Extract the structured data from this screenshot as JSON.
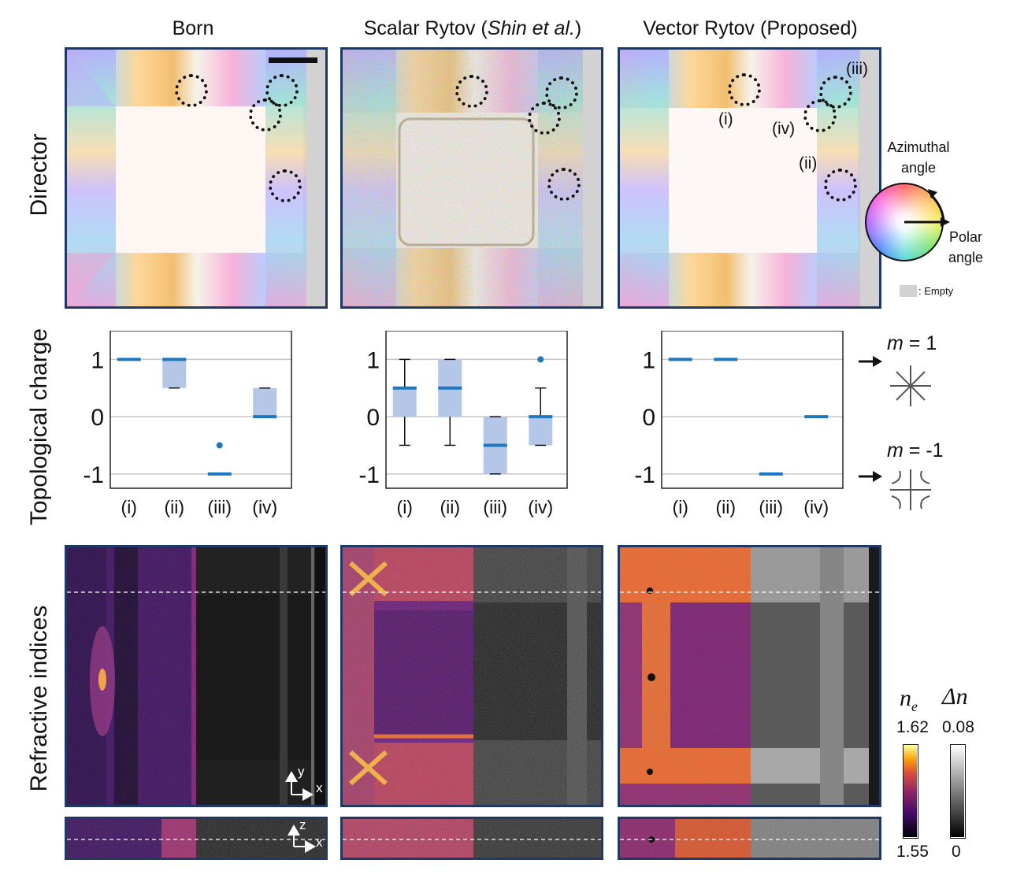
{
  "columns": [
    {
      "title": "Born"
    },
    {
      "title_prefix": "Scalar Rytov (",
      "title_italic": "Shin et al.",
      "title_suffix": ")"
    },
    {
      "title": "Vector Rytov (Proposed)"
    }
  ],
  "row_labels": {
    "director": "Director",
    "topological": "Topological charge",
    "refractive": "Refractive indices"
  },
  "defect_labels": [
    "(i)",
    "(ii)",
    "(iii)",
    "(iv)"
  ],
  "director_legend": {
    "azimuthal_line1": "Azimuthal",
    "azimuthal_line2": "angle",
    "polar_line1": "Polar",
    "polar_line2": "angle",
    "empty_label": ": Empty"
  },
  "charge_legend": {
    "m_pos_var": "m",
    "m_pos_value": " = 1",
    "m_neg_var": "m",
    "m_neg_value": " = -1"
  },
  "chart_data": [
    {
      "type": "box",
      "title": "Born",
      "categories": [
        "(i)",
        "(ii)",
        "(iii)",
        "(iv)"
      ],
      "y_ticks": [
        "1",
        "0",
        "-1"
      ],
      "ylim": [
        -1.25,
        1.5
      ],
      "grid": true,
      "boxes": [
        {
          "whisker_low": 1,
          "q1": 1,
          "median": 1,
          "q3": 1,
          "whisker_high": 1,
          "outliers": []
        },
        {
          "whisker_low": 0.5,
          "q1": 0.5,
          "median": 1,
          "q3": 1,
          "whisker_high": 1,
          "outliers": []
        },
        {
          "whisker_low": -1,
          "q1": -1,
          "median": -1,
          "q3": -1,
          "whisker_high": -1,
          "outliers": [
            -0.5
          ]
        },
        {
          "whisker_low": 0,
          "q1": 0,
          "median": 0,
          "q3": 0.5,
          "whisker_high": 0.5,
          "outliers": []
        }
      ]
    },
    {
      "type": "box",
      "title": "Scalar Rytov (Shin et al.)",
      "categories": [
        "(i)",
        "(ii)",
        "(iii)",
        "(iv)"
      ],
      "y_ticks": [
        "1",
        "0",
        "-1"
      ],
      "ylim": [
        -1.25,
        1.5
      ],
      "grid": true,
      "boxes": [
        {
          "whisker_low": -0.5,
          "q1": 0,
          "median": 0.5,
          "q3": 0.5,
          "whisker_high": 1,
          "outliers": []
        },
        {
          "whisker_low": -0.5,
          "q1": 0,
          "median": 0.5,
          "q3": 1,
          "whisker_high": 1,
          "outliers": []
        },
        {
          "whisker_low": -1,
          "q1": -1,
          "median": -0.5,
          "q3": 0,
          "whisker_high": 0,
          "outliers": []
        },
        {
          "whisker_low": -0.5,
          "q1": -0.5,
          "median": 0,
          "q3": 0,
          "whisker_high": 0.5,
          "outliers": [
            1
          ]
        }
      ]
    },
    {
      "type": "box",
      "title": "Vector Rytov (Proposed)",
      "categories": [
        "(i)",
        "(ii)",
        "(iii)",
        "(iv)"
      ],
      "y_ticks": [
        "1",
        "0",
        "-1"
      ],
      "ylim": [
        -1.25,
        1.5
      ],
      "grid": true,
      "boxes": [
        {
          "whisker_low": 1,
          "q1": 1,
          "median": 1,
          "q3": 1,
          "whisker_high": 1,
          "outliers": []
        },
        {
          "whisker_low": 1,
          "q1": 1,
          "median": 1,
          "q3": 1,
          "whisker_high": 1,
          "outliers": []
        },
        {
          "whisker_low": -1,
          "q1": -1,
          "median": -1,
          "q3": -1,
          "whisker_high": -1,
          "outliers": []
        },
        {
          "whisker_low": 0,
          "q1": 0,
          "median": 0,
          "q3": 0,
          "whisker_high": 0,
          "outliers": []
        }
      ]
    }
  ],
  "colorbars": {
    "ne_symbol": "n",
    "ne_sub": "e",
    "ne_max": "1.62",
    "ne_min": "1.55",
    "dn_symbol": "Δn",
    "dn_max": "0.08",
    "dn_min": "0"
  },
  "axes_labels": {
    "xy_vertical": "y",
    "xy_horizontal": "x",
    "xz_vertical": "z",
    "xz_horizontal": "x"
  },
  "colors": {
    "frame": "#1f3864",
    "median": "#1f77c0",
    "box_fill": "#b4c7e7",
    "grid": "#c8c8c8"
  }
}
